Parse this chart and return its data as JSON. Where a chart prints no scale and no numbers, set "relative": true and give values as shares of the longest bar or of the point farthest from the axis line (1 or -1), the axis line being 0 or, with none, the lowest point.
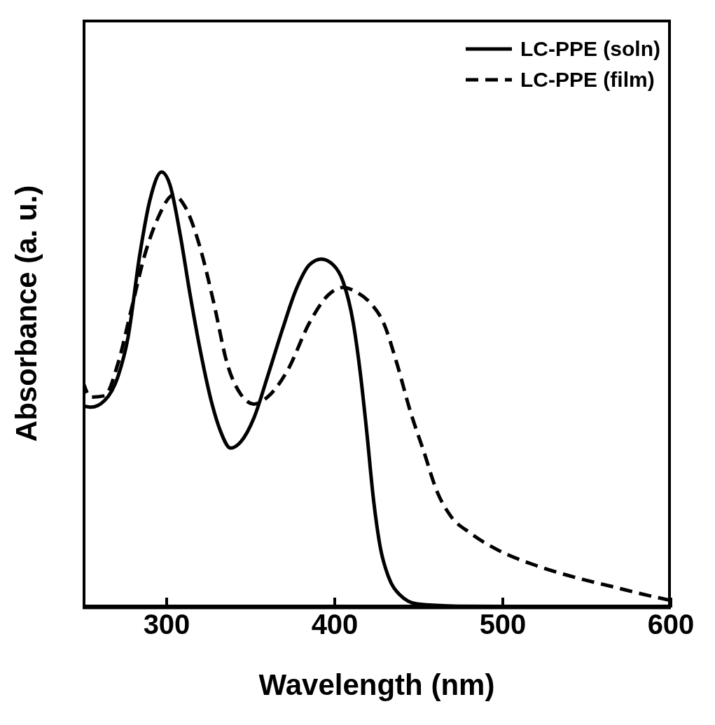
{
  "chart_data": {
    "type": "line",
    "xlabel": "Wavelength (nm)",
    "ylabel": "Absorbance (a. u.)",
    "relative": true,
    "xlim": [
      250,
      600
    ],
    "xticks": [
      300,
      400,
      500,
      600
    ],
    "grid": false,
    "legend": "top right",
    "marker": "none",
    "series": [
      {
        "name": "LC-PPE (soln)",
        "color": "#000000",
        "line_style": "solid",
        "x": [
          250,
          255,
          263,
          271,
          277,
          284,
          290,
          297,
          302,
          308,
          314,
          320,
          327,
          332,
          338,
          344,
          352,
          360,
          369,
          377,
          385,
          392,
          399,
          405,
          411,
          415,
          419,
          423,
          427,
          432,
          439,
          449,
          473,
          600
        ],
        "values": [
          0.463,
          0.46,
          0.475,
          0.53,
          0.62,
          0.81,
          0.935,
          1.0,
          0.97,
          0.857,
          0.717,
          0.59,
          0.467,
          0.405,
          0.366,
          0.38,
          0.436,
          0.53,
          0.64,
          0.73,
          0.787,
          0.8,
          0.787,
          0.748,
          0.654,
          0.545,
          0.405,
          0.25,
          0.14,
          0.07,
          0.028,
          0.008,
          0.003,
          0
        ]
      },
      {
        "name": "LC-PPE (film)",
        "color": "#000000",
        "line_style": "dashed",
        "x": [
          250,
          255,
          263,
          271,
          279,
          287,
          295,
          304,
          311,
          320,
          328,
          336,
          344,
          352,
          360,
          372,
          385,
          396,
          405,
          413,
          421,
          429,
          437,
          445,
          453,
          461,
          469,
          481,
          497,
          517,
          542,
          566,
          586,
          600
        ],
        "values": [
          0.52,
          0.483,
          0.486,
          0.56,
          0.685,
          0.81,
          0.896,
          0.947,
          0.92,
          0.825,
          0.7,
          0.56,
          0.49,
          0.467,
          0.483,
          0.545,
          0.654,
          0.717,
          0.735,
          0.724,
          0.7,
          0.654,
          0.56,
          0.45,
          0.358,
          0.265,
          0.21,
          0.17,
          0.132,
          0.1,
          0.07,
          0.047,
          0.028,
          0.016
        ]
      }
    ]
  }
}
